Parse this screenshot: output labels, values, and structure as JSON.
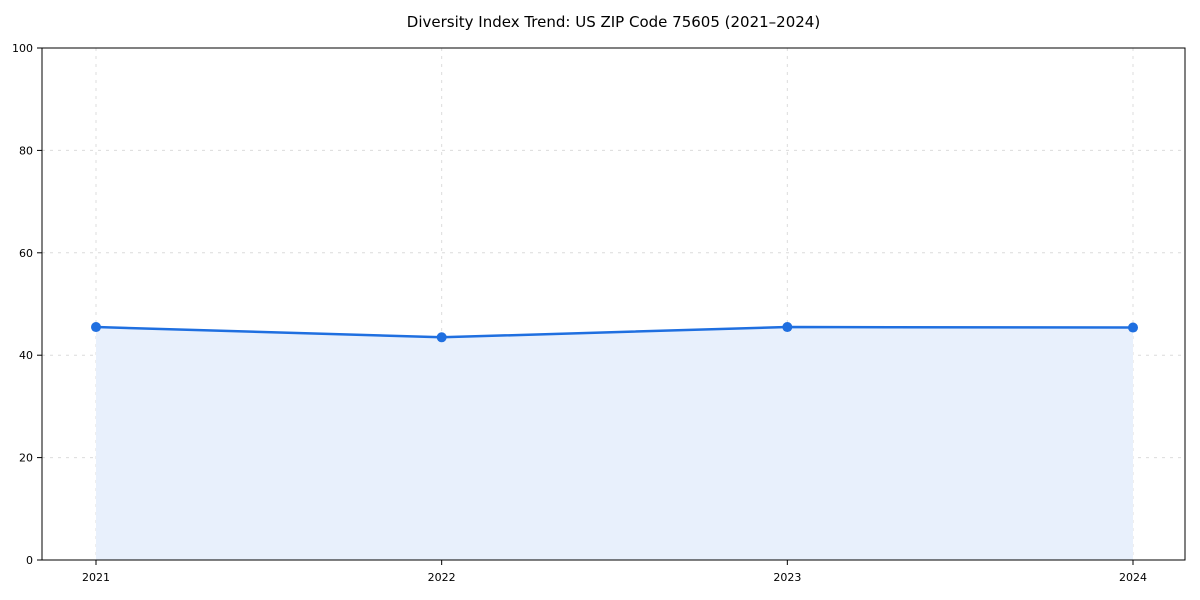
{
  "title": "Diversity Index Trend: US ZIP Code 75605 (2021–2024)",
  "chart_data": {
    "type": "line",
    "title": "Diversity Index Trend: US ZIP Code 75605 (2021–2024)",
    "categories": [
      "2021",
      "2022",
      "2023",
      "2024"
    ],
    "series": [
      {
        "name": "Diversity Index",
        "values": [
          45.5,
          43.5,
          45.5,
          45.4
        ]
      }
    ],
    "xlabel": "",
    "ylabel": "",
    "ylim": [
      0,
      100
    ],
    "yticks": [
      0,
      20,
      40,
      60,
      80,
      100
    ],
    "grid": true,
    "grid_style": "dashed",
    "legend": false,
    "area_fill": true,
    "marker": "circle",
    "colors": {
      "line": "#1f6fe0",
      "marker": "#1f6fe0",
      "fill": "#e8f0fc",
      "grid": "#dcdcdc",
      "spine": "#000000",
      "text": "#000000",
      "background": "#ffffff"
    }
  }
}
